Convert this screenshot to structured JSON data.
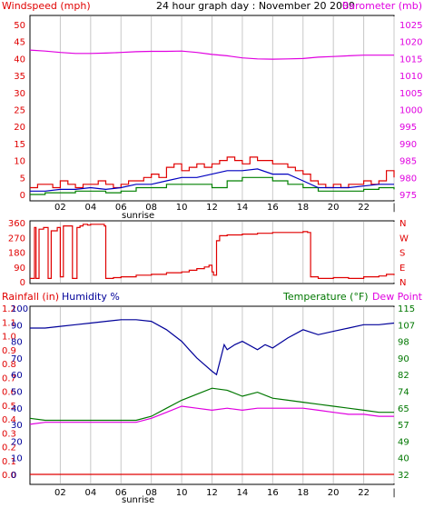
{
  "colors": {
    "wind": "#e00000",
    "wind_avg": "#0000c0",
    "wind_low": "#008000",
    "barometer": "#e000e0",
    "direction": "#e00000",
    "humidity": "#000099",
    "temperature": "#007700",
    "dewpoint": "#e000e0",
    "rainfall": "#e00000",
    "text_dark": "#000000",
    "grid": "#c8c8c8"
  },
  "chart_data": [
    {
      "type": "line",
      "title": "24 hour graph day : November 20 2009",
      "ylabel_left": "Windspeed (mph)",
      "ylabel_right": "Barometer (mb)",
      "x_ticks": [
        "02",
        "04",
        "06",
        "08",
        "10",
        "12",
        "14",
        "16",
        "18",
        "20",
        "22",
        "|"
      ],
      "x_annotation": "sunrise",
      "y_left_ticks": [
        "50",
        "45",
        "40",
        "35",
        "30",
        "25",
        "20",
        "15",
        "10",
        "5",
        "0"
      ],
      "y_right_ticks": [
        "1025",
        "1020",
        "1015",
        "1010",
        "1005",
        "1000",
        "995",
        "990",
        "985",
        "980",
        "975"
      ],
      "ylim_left": [
        0,
        50
      ],
      "ylim_right": [
        975,
        1025
      ],
      "x_range_hours": [
        0,
        24
      ],
      "grid": "vertical",
      "series": [
        {
          "name": "Windspeed",
          "x": [
            0,
            0.5,
            1,
            1.5,
            2,
            2.5,
            3,
            3.5,
            4,
            4.5,
            5,
            5.5,
            6,
            6.5,
            7,
            7.5,
            8,
            8.5,
            9,
            9.5,
            10,
            10.5,
            11,
            11.5,
            12,
            12.5,
            13,
            13.5,
            14,
            14.5,
            15,
            15.5,
            16,
            16.5,
            17,
            17.5,
            18,
            18.5,
            19,
            19.5,
            20,
            20.5,
            21,
            21.5,
            22,
            22.5,
            23,
            23.5,
            24
          ],
          "values": [
            2,
            3,
            3,
            2,
            4,
            3,
            2,
            3,
            3,
            4,
            3,
            2,
            3,
            4,
            4,
            5,
            6,
            5,
            8,
            9,
            7,
            8,
            9,
            8,
            9,
            10,
            11,
            10,
            9,
            11,
            10,
            10,
            9,
            9,
            8,
            7,
            6,
            4,
            3,
            2,
            3,
            2,
            3,
            3,
            4,
            3,
            4,
            7,
            5
          ]
        },
        {
          "name": "Wind average",
          "x": [
            0,
            1,
            2,
            3,
            4,
            5,
            6,
            7,
            8,
            9,
            10,
            11,
            12,
            13,
            14,
            15,
            16,
            17,
            18,
            19,
            20,
            21,
            22,
            23,
            24
          ],
          "values": [
            1,
            1,
            1.5,
            1.5,
            2,
            1.5,
            2,
            3,
            3,
            4,
            5,
            5,
            6,
            7,
            7,
            7.5,
            6,
            6,
            4,
            2,
            2,
            2,
            2.5,
            3,
            3
          ]
        },
        {
          "name": "Wind low",
          "x": [
            0,
            1,
            2,
            3,
            4,
            5,
            6,
            7,
            8,
            9,
            10,
            11,
            12,
            13,
            14,
            15,
            16,
            17,
            18,
            19,
            20,
            21,
            22,
            23,
            24
          ],
          "values": [
            0,
            0.5,
            0.5,
            1,
            1,
            0.5,
            1,
            2,
            2,
            3,
            3,
            3,
            2,
            4,
            5,
            5,
            4,
            3,
            2,
            1,
            1,
            1,
            1.5,
            2,
            1.5
          ]
        },
        {
          "name": "Barometer",
          "axis": "right",
          "x": [
            0,
            1,
            2,
            3,
            4,
            5,
            6,
            7,
            8,
            9,
            10,
            11,
            12,
            13,
            14,
            15,
            16,
            17,
            18,
            19,
            20,
            21,
            22,
            23,
            24
          ],
          "values": [
            1017.5,
            1017.2,
            1016.8,
            1016.5,
            1016.5,
            1016.6,
            1016.8,
            1017,
            1017.1,
            1017.1,
            1017.2,
            1016.8,
            1016.2,
            1015.8,
            1015.2,
            1014.9,
            1014.8,
            1014.9,
            1015,
            1015.4,
            1015.6,
            1015.8,
            1016,
            1016,
            1016
          ]
        }
      ]
    },
    {
      "type": "line",
      "y_left_ticks": [
        "360",
        "270",
        "180",
        "90",
        "0"
      ],
      "y_right_ticks": [
        "N",
        "W",
        "S",
        "E",
        "N"
      ],
      "ylim_left": [
        0,
        360
      ],
      "x_range_hours": [
        0,
        24
      ],
      "grid": "vertical",
      "series": [
        {
          "name": "Wind direction",
          "x": [
            0,
            0.3,
            0.4,
            0.6,
            0.9,
            1.2,
            1.4,
            1.8,
            2,
            2.2,
            2.5,
            2.8,
            3.1,
            3.3,
            3.5,
            3.8,
            4,
            4.5,
            4.9,
            5,
            5.5,
            6,
            7,
            8,
            9,
            10,
            10.5,
            11,
            11.5,
            11.8,
            12,
            12.1,
            12.3,
            12.5,
            13,
            14,
            15,
            16,
            17,
            18,
            18.3,
            18.5,
            19,
            20,
            21,
            22,
            23,
            23.5,
            24
          ],
          "values": [
            20,
            330,
            20,
            320,
            330,
            20,
            310,
            330,
            30,
            340,
            340,
            20,
            330,
            340,
            350,
            345,
            350,
            350,
            340,
            20,
            25,
            30,
            40,
            45,
            55,
            60,
            70,
            80,
            90,
            100,
            60,
            40,
            250,
            280,
            285,
            290,
            295,
            300,
            300,
            305,
            300,
            30,
            20,
            25,
            20,
            30,
            35,
            45,
            40
          ]
        }
      ]
    },
    {
      "type": "line",
      "ylabel_rainfall": "Rainfall (in)",
      "ylabel_humidity": "Humidity %",
      "ylabel_temperature": "Temperature (°F)",
      "ylabel_dewpoint": "Dew Point",
      "x_ticks": [
        "02",
        "04",
        "06",
        "08",
        "10",
        "12",
        "14",
        "16",
        "18",
        "20",
        "22",
        "|"
      ],
      "x_annotation": "sunrise",
      "rain_ticks": [
        "1.2",
        "1.1",
        "1.0",
        "0.9",
        "0.8",
        "0.7",
        "0.6",
        "0.5",
        "0.4",
        "0.3",
        "0.2",
        "0.1",
        "0.0"
      ],
      "humidity_ticks": [
        "100",
        "90",
        "80",
        "70",
        "60",
        "50",
        "40",
        "30",
        "20",
        "10",
        "0"
      ],
      "temp_ticks": [
        "115",
        "107",
        "98",
        "90",
        "82",
        "74",
        "65",
        "57",
        "49",
        "40",
        "32"
      ],
      "ylim_humidity": [
        0,
        100
      ],
      "ylim_temperature": [
        32,
        115
      ],
      "ylim_rainfall": [
        0,
        1.2
      ],
      "x_range_hours": [
        0,
        24
      ],
      "grid": "vertical",
      "series": [
        {
          "name": "Humidity",
          "axis": "humidity",
          "x": [
            0,
            1,
            2,
            3,
            4,
            5,
            6,
            7,
            8,
            9,
            10,
            10.5,
            11,
            11.5,
            12,
            12.3,
            12.8,
            13,
            13.5,
            14,
            15,
            15.5,
            16,
            17,
            18,
            19,
            20,
            21,
            22,
            23,
            24
          ],
          "values": [
            88,
            88,
            89,
            90,
            91,
            92,
            93,
            93,
            92,
            87,
            80,
            75,
            70,
            66,
            62,
            60,
            78,
            75,
            78,
            80,
            75,
            78,
            76,
            82,
            87,
            84,
            86,
            88,
            90,
            90,
            91
          ]
        },
        {
          "name": "Temperature",
          "axis": "temperature",
          "x": [
            0,
            1,
            2,
            3,
            4,
            5,
            6,
            7,
            8,
            9,
            10,
            11,
            12,
            13,
            14,
            15,
            16,
            17,
            18,
            19,
            20,
            21,
            22,
            23,
            24
          ],
          "values": [
            60,
            59,
            59,
            59,
            59,
            59,
            59,
            59,
            61,
            65,
            69,
            72,
            75,
            74,
            71,
            73,
            70,
            69,
            68,
            67,
            66,
            65,
            64,
            63,
            63
          ]
        },
        {
          "name": "Dew Point",
          "axis": "temperature",
          "x": [
            0,
            1,
            2,
            3,
            4,
            5,
            6,
            7,
            8,
            9,
            10,
            11,
            12,
            13,
            14,
            15,
            16,
            17,
            18,
            19,
            20,
            21,
            22,
            23,
            24
          ],
          "values": [
            57,
            58,
            58,
            58,
            58,
            58,
            58,
            58,
            60,
            63,
            66,
            65,
            64,
            65,
            64,
            65,
            65,
            65,
            65,
            64,
            63,
            62,
            62,
            61,
            61
          ]
        },
        {
          "name": "Rainfall",
          "axis": "rainfall",
          "x": [
            0,
            24
          ],
          "values": [
            0,
            0
          ]
        }
      ]
    }
  ]
}
